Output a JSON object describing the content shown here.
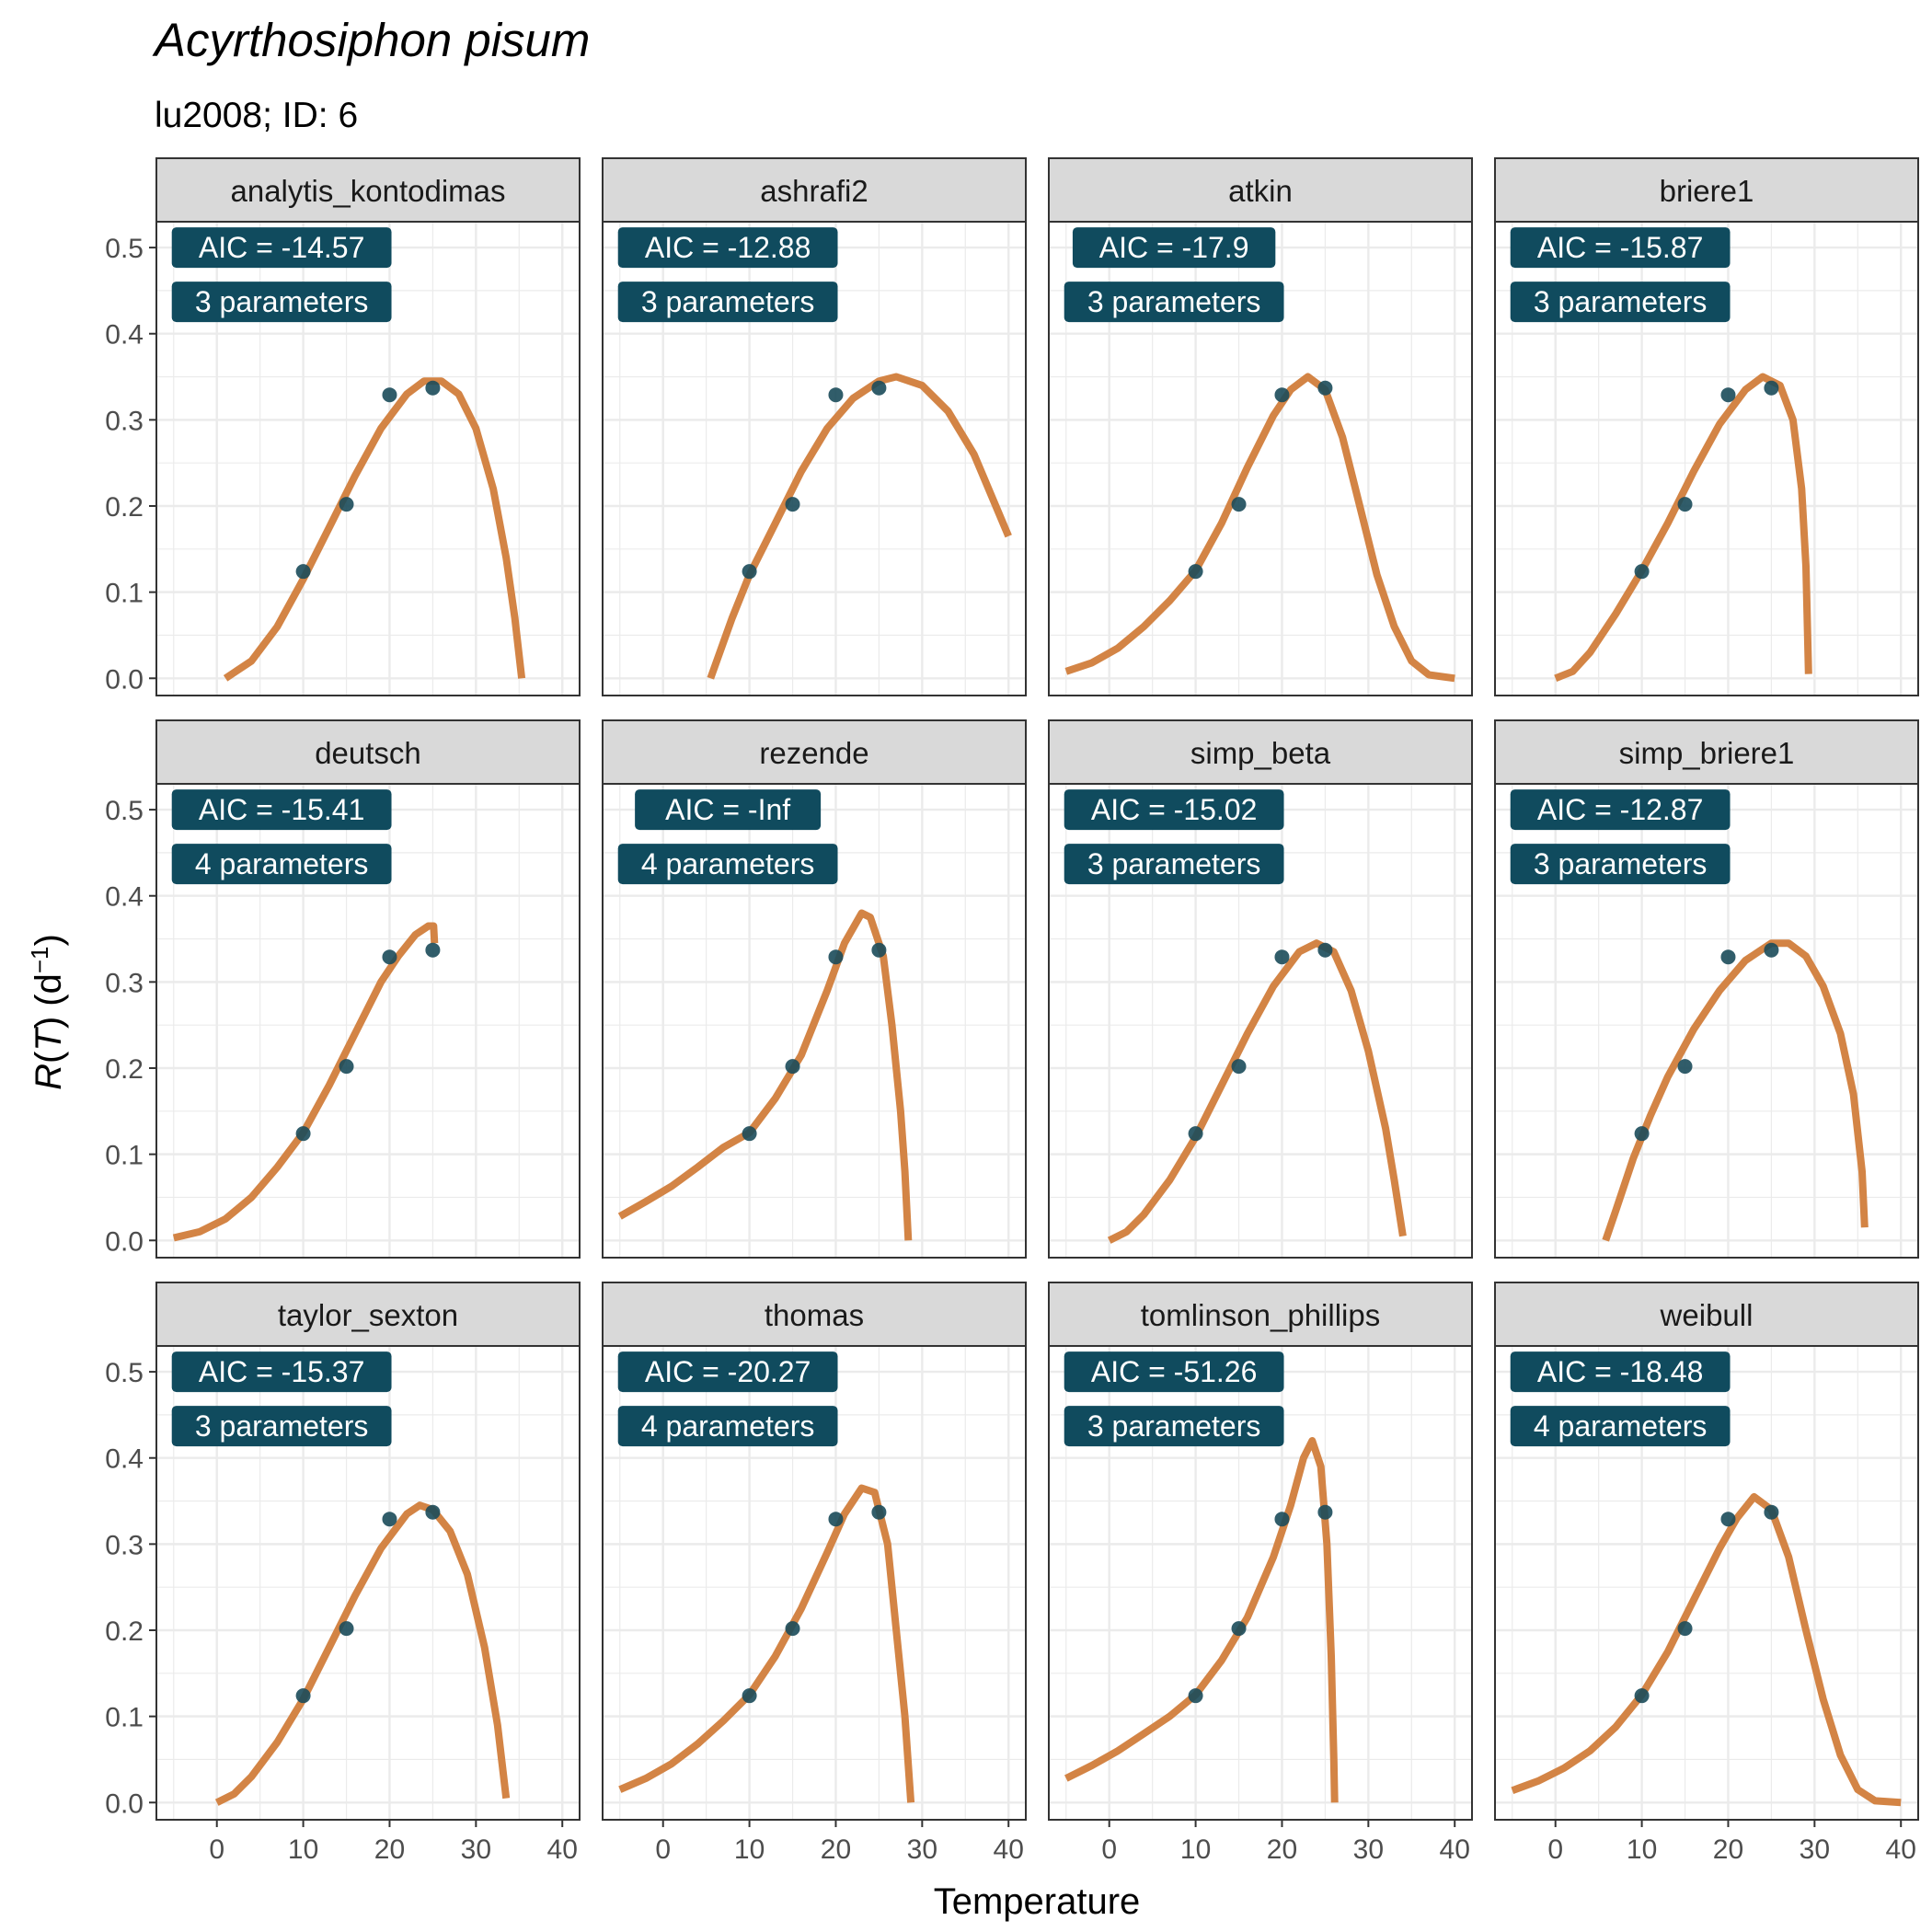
{
  "title": "Acyrthosiphon pisum",
  "subtitle": "lu2008; ID: 6",
  "chart_data": {
    "type": "scatter",
    "layout": "facet-grid-3x4",
    "xlabel": "Temperature",
    "ylabel_parts": [
      "R",
      "(",
      "T",
      ")",
      " (d",
      "−1",
      ")"
    ],
    "xlim": [
      -7,
      42
    ],
    "ylim": [
      -0.02,
      0.53
    ],
    "x_ticks": [
      0,
      10,
      20,
      30,
      40
    ],
    "x_tick_labels": [
      "0",
      "10",
      "20",
      "30",
      "40"
    ],
    "y_ticks": [
      0.0,
      0.1,
      0.2,
      0.3,
      0.4,
      0.5
    ],
    "y_tick_labels": [
      "0.0",
      "0.1",
      "0.2",
      "0.3",
      "0.4",
      "0.5"
    ],
    "grid": true,
    "points": [
      {
        "x": 10,
        "y": 0.124
      },
      {
        "x": 15,
        "y": 0.202
      },
      {
        "x": 20,
        "y": 0.329
      },
      {
        "x": 25,
        "y": 0.337
      }
    ],
    "colors": {
      "curve": "#d38445",
      "point": "#1b4b5a",
      "label_bg": "#104b5e",
      "label_text": "#ffffff",
      "strip_bg": "#d9d9d9",
      "grid": "#ebebeb",
      "panel_border": "#333333"
    },
    "panels": [
      {
        "name": "analytis_kontodimas",
        "aic": "AIC = -14.57",
        "params": "3 parameters",
        "curve": [
          [
            1,
            0
          ],
          [
            4,
            0.02
          ],
          [
            7,
            0.06
          ],
          [
            10,
            0.115
          ],
          [
            13,
            0.175
          ],
          [
            16,
            0.235
          ],
          [
            19,
            0.29
          ],
          [
            22,
            0.33
          ],
          [
            24,
            0.345
          ],
          [
            26,
            0.345
          ],
          [
            28,
            0.33
          ],
          [
            30,
            0.29
          ],
          [
            32,
            0.22
          ],
          [
            33.5,
            0.14
          ],
          [
            34.5,
            0.07
          ],
          [
            35.3,
            0
          ]
        ]
      },
      {
        "name": "ashrafi2",
        "aic": "AIC = -12.88",
        "params": "3 parameters",
        "curve": [
          [
            5.5,
            0
          ],
          [
            8,
            0.07
          ],
          [
            10,
            0.12
          ],
          [
            13,
            0.18
          ],
          [
            16,
            0.24
          ],
          [
            19,
            0.29
          ],
          [
            22,
            0.325
          ],
          [
            25,
            0.345
          ],
          [
            27,
            0.35
          ],
          [
            30,
            0.34
          ],
          [
            33,
            0.31
          ],
          [
            36,
            0.26
          ],
          [
            40,
            0.165
          ]
        ]
      },
      {
        "name": "atkin",
        "aic": "AIC = -17.9",
        "params": "3 parameters",
        "curve": [
          [
            -5,
            0.008
          ],
          [
            -2,
            0.018
          ],
          [
            1,
            0.035
          ],
          [
            4,
            0.06
          ],
          [
            7,
            0.09
          ],
          [
            10,
            0.125
          ],
          [
            13,
            0.18
          ],
          [
            16,
            0.245
          ],
          [
            19,
            0.305
          ],
          [
            21,
            0.335
          ],
          [
            23,
            0.35
          ],
          [
            25,
            0.335
          ],
          [
            27,
            0.28
          ],
          [
            29,
            0.2
          ],
          [
            31,
            0.12
          ],
          [
            33,
            0.06
          ],
          [
            35,
            0.02
          ],
          [
            37,
            0.004
          ],
          [
            40,
            0
          ]
        ]
      },
      {
        "name": "briere1",
        "aic": "AIC = -15.87",
        "params": "3 parameters",
        "curve": [
          [
            0,
            0
          ],
          [
            2,
            0.008
          ],
          [
            4,
            0.03
          ],
          [
            7,
            0.075
          ],
          [
            10,
            0.125
          ],
          [
            13,
            0.18
          ],
          [
            16,
            0.24
          ],
          [
            19,
            0.295
          ],
          [
            22,
            0.335
          ],
          [
            24,
            0.35
          ],
          [
            26,
            0.34
          ],
          [
            27.5,
            0.3
          ],
          [
            28.5,
            0.22
          ],
          [
            29,
            0.13
          ],
          [
            29.2,
            0.05
          ],
          [
            29.3,
            0.005
          ]
        ]
      },
      {
        "name": "deutsch",
        "aic": "AIC = -15.41",
        "params": "4 parameters",
        "curve": [
          [
            -5,
            0.003
          ],
          [
            -2,
            0.01
          ],
          [
            1,
            0.025
          ],
          [
            4,
            0.05
          ],
          [
            7,
            0.085
          ],
          [
            10,
            0.125
          ],
          [
            13,
            0.18
          ],
          [
            16,
            0.24
          ],
          [
            19,
            0.3
          ],
          [
            21,
            0.33
          ],
          [
            23,
            0.355
          ],
          [
            24.5,
            0.365
          ],
          [
            25.1,
            0.365
          ],
          [
            25.2,
            0.345
          ]
        ]
      },
      {
        "name": "rezende",
        "aic": "AIC = -Inf",
        "params": "4 parameters",
        "curve": [
          [
            -5,
            0.028
          ],
          [
            -2,
            0.045
          ],
          [
            1,
            0.063
          ],
          [
            4,
            0.085
          ],
          [
            7,
            0.108
          ],
          [
            10,
            0.125
          ],
          [
            13,
            0.165
          ],
          [
            16,
            0.215
          ],
          [
            19,
            0.29
          ],
          [
            21,
            0.345
          ],
          [
            23,
            0.38
          ],
          [
            24,
            0.375
          ],
          [
            25.5,
            0.33
          ],
          [
            26.5,
            0.25
          ],
          [
            27.5,
            0.15
          ],
          [
            28,
            0.08
          ],
          [
            28.4,
            0
          ]
        ]
      },
      {
        "name": "simp_beta",
        "aic": "AIC = -15.02",
        "params": "3 parameters",
        "curve": [
          [
            0,
            0
          ],
          [
            2,
            0.01
          ],
          [
            4,
            0.03
          ],
          [
            7,
            0.07
          ],
          [
            10,
            0.12
          ],
          [
            13,
            0.18
          ],
          [
            16,
            0.24
          ],
          [
            19,
            0.295
          ],
          [
            22,
            0.335
          ],
          [
            24,
            0.345
          ],
          [
            26,
            0.335
          ],
          [
            28,
            0.29
          ],
          [
            30,
            0.22
          ],
          [
            32,
            0.13
          ],
          [
            33,
            0.07
          ],
          [
            34,
            0.005
          ]
        ]
      },
      {
        "name": "simp_briere1",
        "aic": "AIC = -12.87",
        "params": "3 parameters",
        "curve": [
          [
            5.8,
            0
          ],
          [
            7,
            0.035
          ],
          [
            9,
            0.095
          ],
          [
            11,
            0.145
          ],
          [
            13,
            0.19
          ],
          [
            16,
            0.245
          ],
          [
            19,
            0.29
          ],
          [
            22,
            0.325
          ],
          [
            25,
            0.345
          ],
          [
            27,
            0.345
          ],
          [
            29,
            0.33
          ],
          [
            31,
            0.295
          ],
          [
            33,
            0.24
          ],
          [
            34.5,
            0.17
          ],
          [
            35.5,
            0.08
          ],
          [
            35.8,
            0.015
          ]
        ]
      },
      {
        "name": "taylor_sexton",
        "aic": "AIC = -15.37",
        "params": "3 parameters",
        "curve": [
          [
            0,
            0
          ],
          [
            2,
            0.01
          ],
          [
            4,
            0.03
          ],
          [
            7,
            0.07
          ],
          [
            10,
            0.12
          ],
          [
            13,
            0.18
          ],
          [
            16,
            0.24
          ],
          [
            19,
            0.295
          ],
          [
            22,
            0.335
          ],
          [
            23.5,
            0.345
          ],
          [
            25,
            0.34
          ],
          [
            27,
            0.315
          ],
          [
            29,
            0.265
          ],
          [
            31,
            0.18
          ],
          [
            32.5,
            0.09
          ],
          [
            33.5,
            0.005
          ]
        ]
      },
      {
        "name": "thomas",
        "aic": "AIC = -20.27",
        "params": "4 parameters",
        "curve": [
          [
            -5,
            0.015
          ],
          [
            -2,
            0.028
          ],
          [
            1,
            0.045
          ],
          [
            4,
            0.068
          ],
          [
            7,
            0.095
          ],
          [
            10,
            0.125
          ],
          [
            13,
            0.17
          ],
          [
            16,
            0.225
          ],
          [
            19,
            0.29
          ],
          [
            21,
            0.335
          ],
          [
            23,
            0.365
          ],
          [
            24.5,
            0.36
          ],
          [
            26,
            0.3
          ],
          [
            27,
            0.2
          ],
          [
            28,
            0.1
          ],
          [
            28.7,
            0
          ]
        ]
      },
      {
        "name": "tomlinson_phillips",
        "aic": "AIC = -51.26",
        "params": "3 parameters",
        "curve": [
          [
            -5,
            0.028
          ],
          [
            -2,
            0.043
          ],
          [
            1,
            0.06
          ],
          [
            4,
            0.08
          ],
          [
            7,
            0.1
          ],
          [
            10,
            0.125
          ],
          [
            13,
            0.165
          ],
          [
            16,
            0.215
          ],
          [
            19,
            0.285
          ],
          [
            21,
            0.345
          ],
          [
            22.5,
            0.4
          ],
          [
            23.5,
            0.42
          ],
          [
            24.5,
            0.39
          ],
          [
            25.2,
            0.3
          ],
          [
            25.7,
            0.17
          ],
          [
            26,
            0.05
          ],
          [
            26.1,
            0
          ]
        ]
      },
      {
        "name": "weibull",
        "aic": "AIC = -18.48",
        "params": "4 parameters",
        "curve": [
          [
            -5,
            0.014
          ],
          [
            -2,
            0.025
          ],
          [
            1,
            0.04
          ],
          [
            4,
            0.06
          ],
          [
            7,
            0.088
          ],
          [
            10,
            0.125
          ],
          [
            13,
            0.175
          ],
          [
            16,
            0.235
          ],
          [
            19,
            0.295
          ],
          [
            21,
            0.33
          ],
          [
            23,
            0.355
          ],
          [
            25,
            0.34
          ],
          [
            27,
            0.285
          ],
          [
            29,
            0.2
          ],
          [
            31,
            0.12
          ],
          [
            33,
            0.055
          ],
          [
            35,
            0.015
          ],
          [
            37,
            0.002
          ],
          [
            40,
            0
          ]
        ]
      }
    ]
  }
}
